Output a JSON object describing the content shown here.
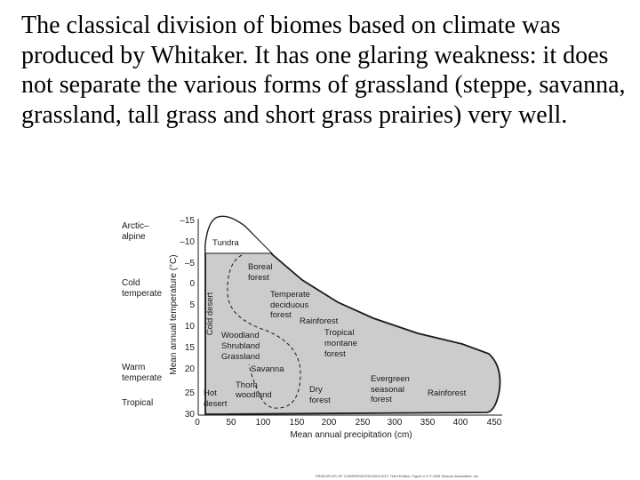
{
  "slide": {
    "paragraph": "The classical division of biomes based on climate was produced by Whitaker. It has one glaring weakness: it does not separate the various forms of grassland (steppe, savanna, grassland, tall grass and short grass prairies) very well."
  },
  "diagram": {
    "y_axis_label": "Mean annual temperature (°C)",
    "x_axis_label": "Mean annual precipitation (cm)",
    "y_ticks": [
      "–15",
      "–10",
      "–5",
      "0",
      "5",
      "10",
      "15",
      "20",
      "25",
      "30"
    ],
    "x_ticks": [
      "0",
      "50",
      "100",
      "150",
      "200",
      "250",
      "300",
      "350",
      "400",
      "450"
    ],
    "zones": {
      "arctic": "Arctic–",
      "alpine": "alpine",
      "cold": "Cold",
      "cold_temperate": "temperate",
      "warm": "Warm",
      "warm_temperate": "temperate",
      "tropical": "Tropical"
    },
    "biomes": {
      "tundra": "Tundra",
      "boreal_1": "Boreal",
      "boreal_2": "forest",
      "cold_desert": "Cold desert",
      "temperate_1": "Temperate",
      "temperate_2": "deciduous",
      "temperate_3": "forest",
      "rainforest_temperate": "Rainforest",
      "tropical_1": "Tropical",
      "tropical_2": "montane",
      "tropical_3": "forest",
      "woodland_1": "Woodland",
      "woodland_2": "Shrubland",
      "woodland_3": "Grassland",
      "savanna": "Savanna",
      "thorn_1": "Thorn",
      "thorn_2": "woodland",
      "hot_1": "Hot",
      "hot_2": "desert",
      "dry_1": "Dry",
      "dry_2": "forest",
      "evergreen_1": "Evergreen",
      "evergreen_2": "seasonal",
      "evergreen_3": "forest",
      "rainforest_tropical": "Rainforest"
    },
    "credit": "PRINCIPLES OF CONSERVATION BIOLOGY, Third Edition, Figure 2.4 © 2006 Sinauer Associates, Inc.",
    "colors": {
      "fill": "#cccccc",
      "line": "#1a1a1a"
    }
  }
}
